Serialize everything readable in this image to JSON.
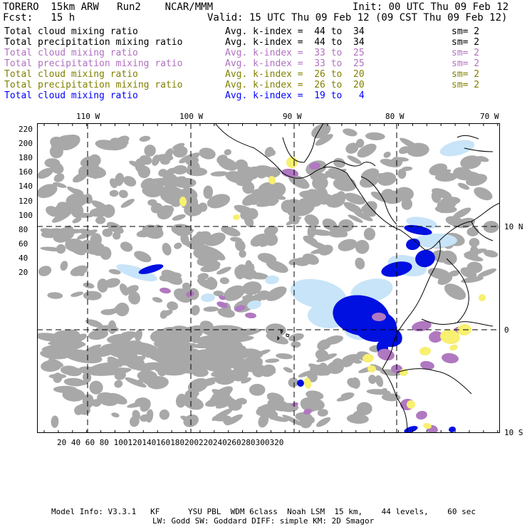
{
  "header": {
    "model": "TORERO  15km ARW   Run2    NCAR/MMM",
    "init": "Init: 00 UTC Thu 09 Feb 12",
    "fcst": "Fcst:   15 h",
    "valid": "Valid: 15 UTC Thu 09 Feb 12 (09 CST Thu 09 Feb 12)"
  },
  "legend": [
    {
      "field": "Total cloud mixing ratio",
      "index": "Avg. k-index =  44 to  34",
      "sm": "sm= 2",
      "color": "#000000"
    },
    {
      "field": "Total precipitation mixing ratio",
      "index": "Avg. k-index =  44 to  34",
      "sm": "sm= 2",
      "color": "#000000"
    },
    {
      "field": "Total cloud mixing ratio",
      "index": "Avg. k-index =  33 to  25",
      "sm": "sm= 2",
      "color": "#b070c0"
    },
    {
      "field": "Total precipitation mixing ratio",
      "index": "Avg. k-index =  33 to  25",
      "sm": "sm= 2",
      "color": "#b070c0"
    },
    {
      "field": "Total cloud mixing ratio",
      "index": "Avg. k-index =  26 to  20",
      "sm": "sm= 2",
      "color": "#808000"
    },
    {
      "field": "Total precipitation mixing ratio",
      "index": "Avg. k-index =  26 to  20",
      "sm": "sm= 2",
      "color": "#808000"
    },
    {
      "field": "Total cloud mixing ratio",
      "index": "Avg. k-index =  19 to   4",
      "sm": "",
      "color": "#0000ff"
    }
  ],
  "map": {
    "lon_labels": [
      "110 W",
      "100 W",
      "90 W",
      "80 W",
      "70 W"
    ],
    "lat_labels": [
      "10 N",
      "0",
      "10 S"
    ],
    "y_ticks": [
      "220",
      "200",
      "180",
      "160",
      "140",
      "120",
      "100",
      "80",
      "60",
      "40",
      "20"
    ],
    "x_ticks": [
      "20",
      "40",
      "60",
      "80",
      "100",
      "120",
      "140",
      "160",
      "180",
      "200",
      "220",
      "240",
      "260",
      "280",
      "300",
      "320"
    ],
    "colors": {
      "cloud_gray": "#a8a8a8",
      "light_blue": "#c8e4f8",
      "deep_blue": "#0010e0",
      "purple": "#b078c0",
      "yellow": "#f8f070"
    }
  },
  "footer": {
    "line1": "Model Info: V3.3.1   KF      YSU PBL  WDM 6class  Noah LSM  15 km,    44 levels,    60 sec",
    "line2": "LW: Godd SW: Goddard DIFF: simple KM: 2D Smagor"
  }
}
